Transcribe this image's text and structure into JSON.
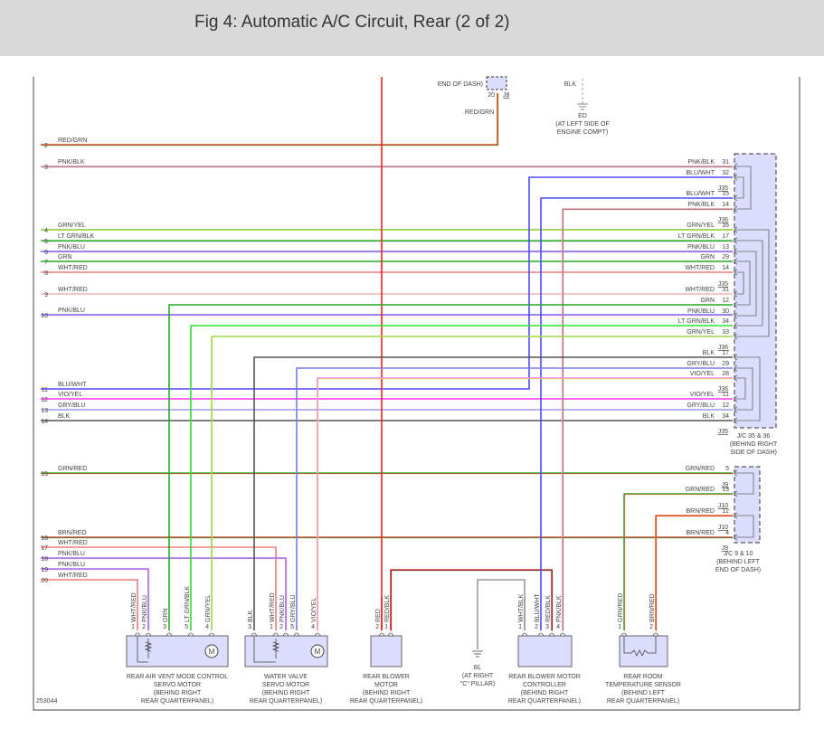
{
  "header": {
    "title": "Fig 4: Automatic A/C Circuit, Rear (2 of 2)"
  },
  "top": {
    "j8_location": "END OF DASH)",
    "j8_pin": "20",
    "j8_connector": "J8",
    "j8_wire": "RED/GRN",
    "ground_wire": "BLK",
    "ground_name": "ED",
    "ground_location_1": "(AT LEFT SIDE OF",
    "ground_location_2": "ENGINE COMPT)"
  },
  "left_wires": [
    {
      "pin": "2",
      "label": "RED/GRN",
      "color": "#e8401c",
      "stripe": "#3aa33a"
    },
    {
      "pin": "3",
      "label": "PNK/BLK",
      "color": "#f08fa0",
      "stripe": "#666666"
    },
    {
      "pin": "4",
      "label": "GRN/YEL",
      "color": "#7ac943",
      "stripe": "#e8e84a"
    },
    {
      "pin": "5",
      "label": "LT GRN/BLK",
      "color": "#33dd33",
      "stripe": "#555555"
    },
    {
      "pin": "6",
      "label": "PNK/BLU",
      "color": "#6666ff",
      "stripe": "#f08fc8"
    },
    {
      "pin": "7",
      "label": "GRN",
      "color": "#22aa22",
      "stripe": ""
    },
    {
      "pin": "8",
      "label": "WHT/RED",
      "color": "#f07a7a",
      "stripe": ""
    },
    {
      "pin": "9",
      "label": "WHT/RED",
      "color": "#f4b4b4",
      "stripe": ""
    },
    {
      "pin": "10",
      "label": "PNK/BLU",
      "color": "#6666ff",
      "stripe": "#f08fc8"
    },
    {
      "pin": "11",
      "label": "BLU/WHT",
      "color": "#4b4bff",
      "stripe": ""
    },
    {
      "pin": "12",
      "label": "VIO/YEL",
      "color": "#ff33ff",
      "stripe": ""
    },
    {
      "pin": "13",
      "label": "GRY/BLU",
      "color": "#9a9aee",
      "stripe": ""
    },
    {
      "pin": "14",
      "label": "BLK",
      "color": "#555555",
      "stripe": ""
    },
    {
      "pin": "15",
      "label": "GRN/RED",
      "color": "#3aa33a",
      "stripe": "#e8401c"
    },
    {
      "pin": "16",
      "label": "BRN/RED",
      "color": "#c0502a",
      "stripe": "#3a8a3a"
    },
    {
      "pin": "17",
      "label": "WHT/RED",
      "color": "#f07a7a",
      "stripe": ""
    },
    {
      "pin": "18",
      "label": "PNK/BLU",
      "color": "#9a6aee",
      "stripe": "#f08fc8"
    },
    {
      "pin": "19",
      "label": "PNK/BLU",
      "color": "#9a6aee",
      "stripe": "#f08fc8"
    },
    {
      "pin": "20",
      "label": "WHT/RED",
      "color": "#f07a7a",
      "stripe": ""
    }
  ],
  "jc35_36": {
    "entries": [
      {
        "pin": "31",
        "label": "PNK/BLK"
      },
      {
        "pin": "32",
        "label": "BLU/WHT"
      },
      {
        "tag": "J35"
      },
      {
        "pin": "15",
        "label": "BLU/WHT",
        "color": "#4b4bff",
        "stripe": ""
      },
      {
        "pin": "14",
        "label": "PNK/BLK",
        "color": "#f08fa0",
        "stripe": "#666666"
      },
      {
        "tag": "J36"
      },
      {
        "pin": "16",
        "label": "GRN/YEL"
      },
      {
        "pin": "17",
        "label": "LT GRN/BLK"
      },
      {
        "pin": "13",
        "label": "PNK/BLU"
      },
      {
        "pin": "29",
        "label": "GRN"
      },
      {
        "pin": "14",
        "label": "WHT/RED"
      },
      {
        "tag": "J35"
      },
      {
        "pin": "31",
        "label": "WHT/RED"
      },
      {
        "pin": "12",
        "label": "GRN",
        "color": "#22aa22",
        "stripe": ""
      },
      {
        "pin": "30",
        "label": "PNK/BLU"
      },
      {
        "pin": "34",
        "label": "LT GRN/BLK",
        "color": "#33dd33",
        "stripe": ""
      },
      {
        "pin": "33",
        "label": "GRN/YEL",
        "color": "#9ad943",
        "stripe": ""
      },
      {
        "tag": "J36"
      },
      {
        "pin": "17",
        "label": "BLK",
        "color": "#555555",
        "stripe": ""
      },
      {
        "pin": "29",
        "label": "GRY/BLU",
        "color": "#7a7aee",
        "stripe": ""
      },
      {
        "pin": "28",
        "label": "VIO/YEL",
        "color": "#f080e8",
        "stripe": "#e8e84a"
      },
      {
        "tag": "J36"
      },
      {
        "pin": "11",
        "label": "VIO/YEL"
      },
      {
        "pin": "12",
        "label": "GRY/BLU"
      },
      {
        "pin": "34",
        "label": "BLK"
      },
      {
        "tag": "J35"
      }
    ],
    "label": [
      "J/C 35 & 36",
      "(BEHIND RIGHT",
      "SIDE OF DASH)"
    ]
  },
  "jc9_10": {
    "entries": [
      {
        "pin": "5",
        "label": "GRN/RED"
      },
      {
        "tag": "J9"
      },
      {
        "pin": "13",
        "label": "GRN/RED",
        "color": "#3aa33a",
        "stripe": "#e8704c"
      },
      {
        "tag": "J10"
      },
      {
        "pin": "12",
        "label": "BRN/RED",
        "color": "#e8602c",
        "stripe": "#c0502a"
      },
      {
        "tag": "J10"
      },
      {
        "pin": "4",
        "label": "BRN/RED"
      },
      {
        "tag": "J9"
      }
    ],
    "label": [
      "J/C 9 & 10",
      "(BEHIND LEFT",
      "END OF DASH)"
    ]
  },
  "components": [
    {
      "name": [
        "REAR AIR VENT MODE CONTROL",
        "SERVO MOTOR",
        "(BEHIND RIGHT",
        "REAR QUARTERPANEL)"
      ],
      "pins": [
        {
          "num": "1",
          "label": "WHT/RED"
        },
        {
          "num": "2",
          "label": "PNK/BLU"
        },
        {
          "num": "3",
          "label": "GRN"
        },
        {
          "num": "5",
          "label": "LT GRN/BLK"
        },
        {
          "num": "4",
          "label": "GRN/YEL"
        }
      ],
      "motor_symbol": "M"
    },
    {
      "name": [
        "WATER VALVE",
        "SERVO MOTOR",
        "(BEHIND RIGHT",
        "REAR QUARTERPANEL)"
      ],
      "pins": [
        {
          "num": "3",
          "label": "BLK"
        },
        {
          "num": "1",
          "label": "WHT/RED"
        },
        {
          "num": "2",
          "label": "PNK/BLU"
        },
        {
          "num": "5",
          "label": "GRY/BLU"
        },
        {
          "num": "4",
          "label": "VIO/YEL"
        }
      ],
      "motor_symbol": "M"
    },
    {
      "name": [
        "REAR BLOWER",
        "MOTOR",
        "(BEHIND RIGHT",
        "REAR QUARTERPANEL)"
      ],
      "pins": [
        {
          "num": "2",
          "label": "RED",
          "color": "#ee2222"
        },
        {
          "num": "1",
          "label": "RED/BLK",
          "color": "#dd3333"
        }
      ]
    },
    {
      "name": [
        "REAR BLOWER MOTOR",
        "CONTROLLER",
        "(BEHIND RIGHT",
        "REAR QUARTERPANEL)"
      ],
      "pins": [
        {
          "num": "1",
          "label": "WHT/BLK",
          "color": "#999999"
        },
        {
          "num": "2",
          "label": "BLU/WHT"
        },
        {
          "num": "3",
          "label": "RED/BLK"
        },
        {
          "num": "4",
          "label": "PNK/BLK"
        }
      ]
    },
    {
      "name": [
        "REAR ROOM",
        "TEMPERATURE SENSOR",
        "(BEHIND LEFT",
        "REAR QUARTERPANEL)"
      ],
      "pins": [
        {
          "num": "1",
          "label": "GRN/RED"
        },
        {
          "num": "2",
          "label": "BRN/RED"
        }
      ]
    }
  ],
  "ground_bl": {
    "name": "BL",
    "location_1": "(AT RIGHT",
    "location_2": "\"C\" PILLAR)"
  },
  "diagram_id": "253044",
  "colors": {
    "connector_fill": "#dcdcfc",
    "frame": "#444444",
    "header_bg": "#d9d9d9"
  }
}
